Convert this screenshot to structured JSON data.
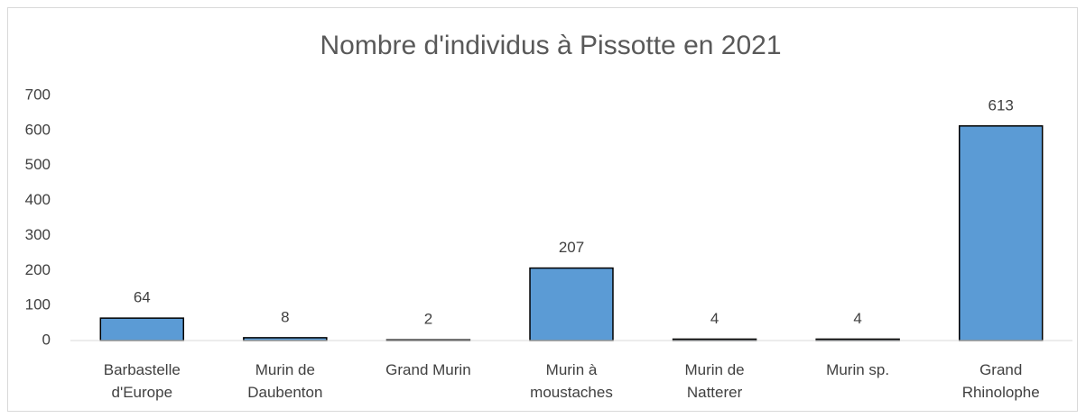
{
  "chart_data": {
    "type": "bar",
    "title": "Nombre d'individus à Pissotte en 2021",
    "categories": [
      "Barbastelle d'Europe",
      "Murin de Daubenton",
      "Grand Murin",
      "Murin à moustaches",
      "Murin de Natterer",
      "Murin sp.",
      "Grand Rhinolophe"
    ],
    "values": [
      64,
      8,
      2,
      207,
      4,
      4,
      613
    ],
    "color": "#5b9bd5",
    "ylim": [
      0,
      700
    ],
    "yticks": [
      0,
      100,
      200,
      300,
      400,
      500,
      600,
      700
    ],
    "grid": false
  }
}
